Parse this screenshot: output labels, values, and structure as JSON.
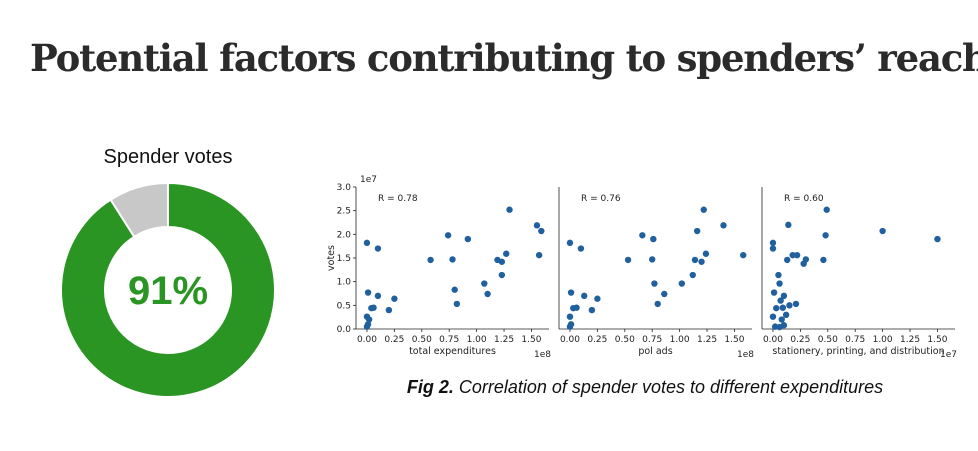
{
  "title": "Potential factors contributing to spenders’ reach",
  "caption": {
    "prefix": "Fig 2.",
    "text": " Correlation of spender votes to different expenditures"
  },
  "colors": {
    "donut_main": "#2a9523",
    "donut_rest": "#c8c8c8",
    "point": "#21609e"
  },
  "chart_data": [
    {
      "type": "pie",
      "title": "Spender votes",
      "center_label": "91%",
      "values": [
        91,
        9
      ]
    },
    {
      "type": "scatter",
      "ylabel": "votes",
      "y_exponent": "1e7",
      "yticks": [
        "0.0",
        "0.5",
        "1.0",
        "1.5",
        "2.0",
        "2.5",
        "3.0"
      ],
      "ylim": [
        0,
        3.0
      ],
      "panels": [
        {
          "xlabel": "total expenditures",
          "x_exponent": "1e8",
          "annotation": "R = 0.78",
          "xlim": [
            -0.1,
            1.66
          ],
          "xticks": [
            "0.00",
            "0.25",
            "0.50",
            "0.75",
            "1.00",
            "1.25",
            "1.50"
          ],
          "points": [
            [
              0.0,
              1.82
            ],
            [
              0.1,
              1.7
            ],
            [
              0.01,
              0.77
            ],
            [
              0.0,
              0.26
            ],
            [
              0.01,
              0.1
            ],
            [
              0.0,
              0.05
            ],
            [
              0.02,
              0.2
            ],
            [
              0.04,
              0.44
            ],
            [
              0.06,
              0.45
            ],
            [
              0.1,
              0.7
            ],
            [
              0.2,
              0.4
            ],
            [
              0.25,
              0.64
            ],
            [
              0.58,
              1.46
            ],
            [
              0.74,
              1.98
            ],
            [
              0.78,
              1.47
            ],
            [
              0.8,
              0.83
            ],
            [
              0.82,
              0.53
            ],
            [
              0.92,
              1.9
            ],
            [
              1.07,
              0.96
            ],
            [
              1.1,
              0.74
            ],
            [
              1.19,
              1.46
            ],
            [
              1.23,
              1.42
            ],
            [
              1.23,
              1.14
            ],
            [
              1.27,
              1.59
            ],
            [
              1.3,
              2.52
            ],
            [
              1.55,
              2.19
            ],
            [
              1.57,
              1.56
            ],
            [
              1.59,
              2.07
            ]
          ]
        },
        {
          "xlabel": "pol ads",
          "x_exponent": "1e8",
          "annotation": "R = 0.76",
          "xlim": [
            -0.1,
            1.66
          ],
          "xticks": [
            "0.00",
            "0.25",
            "0.50",
            "0.75",
            "1.00",
            "1.25",
            "1.50"
          ],
          "points": [
            [
              0.0,
              1.82
            ],
            [
              0.1,
              1.7
            ],
            [
              0.01,
              0.77
            ],
            [
              0.0,
              0.26
            ],
            [
              0.01,
              0.1
            ],
            [
              0.0,
              0.05
            ],
            [
              0.03,
              0.44
            ],
            [
              0.06,
              0.45
            ],
            [
              0.13,
              0.7
            ],
            [
              0.2,
              0.4
            ],
            [
              0.25,
              0.64
            ],
            [
              0.53,
              1.46
            ],
            [
              0.66,
              1.98
            ],
            [
              0.75,
              1.47
            ],
            [
              0.76,
              1.9
            ],
            [
              0.77,
              0.96
            ],
            [
              0.8,
              0.53
            ],
            [
              0.86,
              0.74
            ],
            [
              1.02,
              0.96
            ],
            [
              1.12,
              1.14
            ],
            [
              1.14,
              1.46
            ],
            [
              1.16,
              2.07
            ],
            [
              1.2,
              1.42
            ],
            [
              1.22,
              2.52
            ],
            [
              1.24,
              1.59
            ],
            [
              1.4,
              2.19
            ],
            [
              1.58,
              1.56
            ]
          ]
        },
        {
          "xlabel": "stationery, printing, and distribution",
          "x_exponent": "1e7",
          "annotation": "R = 0.60",
          "xlim": [
            -0.1,
            1.66
          ],
          "xticks": [
            "0.00",
            "0.25",
            "0.50",
            "0.75",
            "1.00",
            "1.25",
            "1.50"
          ],
          "points": [
            [
              0.0,
              1.82
            ],
            [
              0.0,
              1.7
            ],
            [
              0.01,
              0.77
            ],
            [
              0.0,
              0.26
            ],
            [
              0.02,
              0.05
            ],
            [
              0.03,
              0.44
            ],
            [
              0.05,
              1.14
            ],
            [
              0.06,
              0.96
            ],
            [
              0.06,
              0.04
            ],
            [
              0.07,
              0.6
            ],
            [
              0.08,
              0.2
            ],
            [
              0.09,
              0.45
            ],
            [
              0.1,
              0.7
            ],
            [
              0.1,
              0.08
            ],
            [
              0.12,
              0.3
            ],
            [
              0.13,
              1.46
            ],
            [
              0.14,
              2.2
            ],
            [
              0.15,
              0.5
            ],
            [
              0.18,
              1.56
            ],
            [
              0.21,
              0.53
            ],
            [
              0.22,
              1.56
            ],
            [
              0.28,
              1.38
            ],
            [
              0.3,
              1.47
            ],
            [
              0.46,
              1.46
            ],
            [
              0.48,
              1.98
            ],
            [
              0.49,
              2.52
            ],
            [
              1.0,
              2.07
            ],
            [
              1.5,
              1.9
            ]
          ]
        }
      ]
    }
  ]
}
